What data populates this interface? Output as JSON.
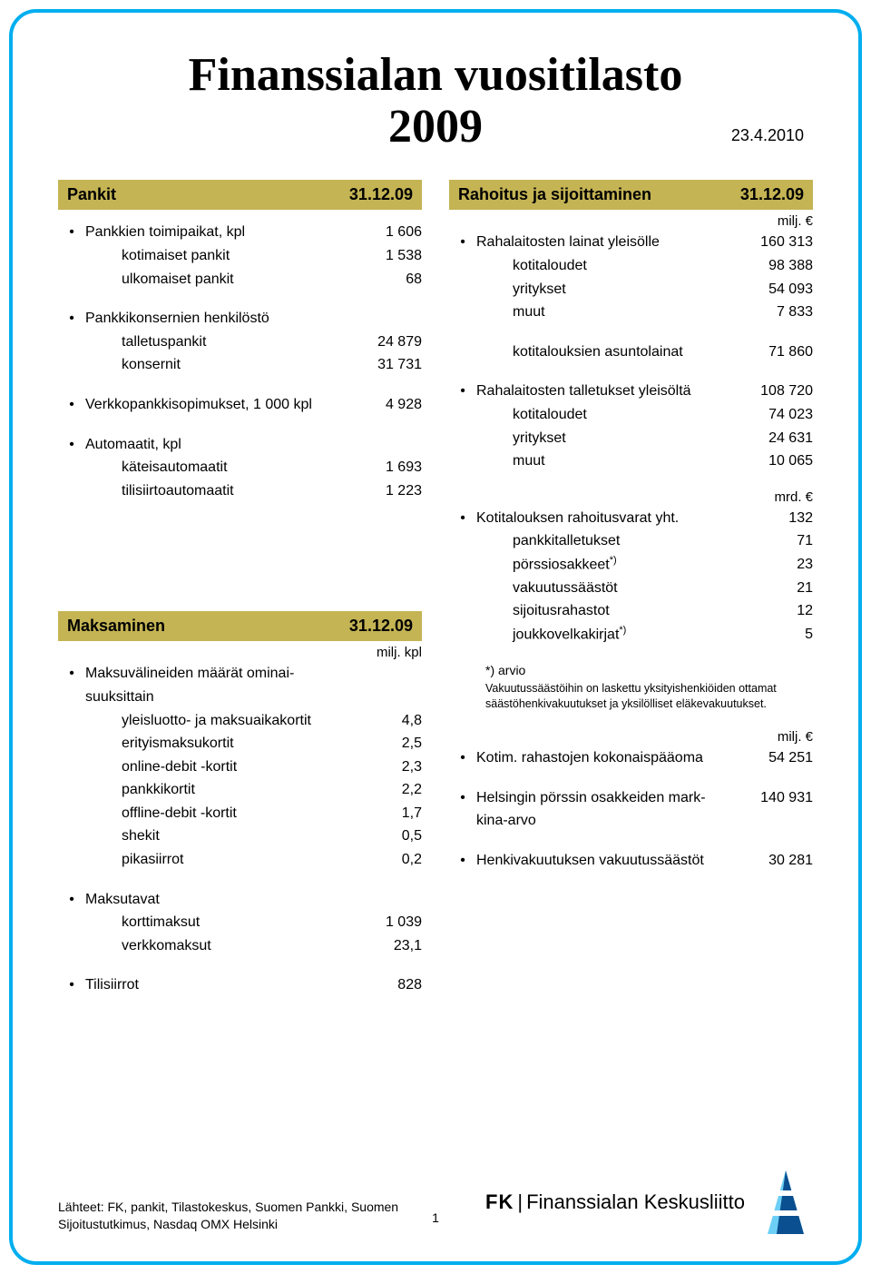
{
  "page": {
    "title": "Finanssialan vuositilasto\n2009",
    "title_line1": "Finanssialan vuositilasto",
    "title_line2": "2009",
    "date": "23.4.2010",
    "page_number": "1",
    "border_color": "#00aeef",
    "header_bg": "#c4b454"
  },
  "pankit": {
    "title": "Pankit",
    "date": "31.12.09",
    "items": [
      {
        "label": "Pankkien toimipaikat, kpl",
        "value": "1 606",
        "main": true
      },
      {
        "label": "kotimaiset pankit",
        "value": "1 538",
        "sub": true
      },
      {
        "label": "ulkomaiset pankit",
        "value": "68",
        "sub": true
      }
    ],
    "group2": [
      {
        "label": "Pankkikonsernien henkilöstö",
        "value": "",
        "main": true
      },
      {
        "label": "talletuspankit",
        "value": "24 879",
        "sub": true
      },
      {
        "label": "konsernit",
        "value": "31 731",
        "sub": true
      }
    ],
    "group3": [
      {
        "label": "Verkkopankkisopimukset, 1 000 kpl",
        "value": "4 928",
        "main": true
      }
    ],
    "group4": [
      {
        "label": "Automaatit, kpl",
        "value": "",
        "main": true
      },
      {
        "label": "käteisautomaatit",
        "value": "1 693",
        "sub": true
      },
      {
        "label": "tilisiirtoautomaatit",
        "value": "1 223",
        "sub": true
      }
    ]
  },
  "maksaminen": {
    "title": "Maksaminen",
    "date": "31.12.09",
    "unit": "milj. kpl",
    "group1": [
      {
        "label": "Maksuvälineiden määrät ominai-\nsuuksittain",
        "label1": "Maksuvälineiden määrät ominai-",
        "label2": "suuksittain",
        "value": "",
        "main": true
      },
      {
        "label": "yleisluotto- ja maksuaikakortit",
        "value": "4,8",
        "sub": true
      },
      {
        "label": "erityismaksukortit",
        "value": "2,5",
        "sub": true
      },
      {
        "label": "online-debit -kortit",
        "value": "2,3",
        "sub": true
      },
      {
        "label": "pankkikortit",
        "value": "2,2",
        "sub": true
      },
      {
        "label": "offline-debit -kortit",
        "value": "1,7",
        "sub": true
      },
      {
        "label": "shekit",
        "value": "0,5",
        "sub": true
      },
      {
        "label": "pikasiirrot",
        "value": "0,2",
        "sub": true
      }
    ],
    "group2": [
      {
        "label": "Maksutavat",
        "value": "",
        "main": true
      },
      {
        "label": "korttimaksut",
        "value": "1 039",
        "sub": true
      },
      {
        "label": "verkkomaksut",
        "value": "23,1",
        "sub": true
      }
    ],
    "group3": [
      {
        "label": "Tilisiirrot",
        "value": "828",
        "main": true
      }
    ]
  },
  "rahoitus": {
    "title": "Rahoitus ja sijoittaminen",
    "date": "31.12.09",
    "unit1": "milj. €",
    "group1": [
      {
        "label": "Rahalaitosten lainat yleisölle",
        "value": "160 313",
        "main": true
      },
      {
        "label": "kotitaloudet",
        "value": "98 388",
        "sub": true
      },
      {
        "label": "yritykset",
        "value": "54 093",
        "sub": true
      },
      {
        "label": "muut",
        "value": "7 833",
        "sub": true
      }
    ],
    "group2": [
      {
        "label": "kotitalouksien asuntolainat",
        "value": "71 860",
        "sub": true
      }
    ],
    "group3": [
      {
        "label": "Rahalaitosten talletukset yleisöltä",
        "value": "108 720",
        "main": true
      },
      {
        "label": "kotitaloudet",
        "value": "74 023",
        "sub": true
      },
      {
        "label": "yritykset",
        "value": "24 631",
        "sub": true
      },
      {
        "label": "muut",
        "value": "10 065",
        "sub": true
      }
    ],
    "unit2": "mrd. €",
    "group4": [
      {
        "label": "Kotitalouksen rahoitusvarat yht.",
        "value": "132",
        "main": true
      },
      {
        "label": "pankkitalletukset",
        "value": "71",
        "sub": true
      },
      {
        "label": "pörssiosakkeet",
        "sup": "*)",
        "value": "23",
        "sub": true
      },
      {
        "label": "vakuutussäästöt",
        "value": "21",
        "sub": true
      },
      {
        "label": "sijoitusrahastot",
        "value": "12",
        "sub": true
      },
      {
        "label": "joukkovelkakirjat",
        "sup": "*)",
        "value": "5",
        "sub": true
      }
    ],
    "footnote_label": "*) arvio",
    "footnote": "Vakuutussäästöihin on laskettu yksityishenkiöiden ottamat säästöhenkivakuutukset ja yksilölliset eläkevakuutukset.",
    "unit3": "milj. €",
    "group5": [
      {
        "label": "Kotim. rahastojen kokonaispääoma",
        "value": "54 251",
        "main": true
      }
    ],
    "group6": [
      {
        "label": "Helsingin pörssin osakkeiden mark-",
        "label2": "kina-arvo",
        "value": "140 931",
        "main": true,
        "twoline": true
      }
    ],
    "group7": [
      {
        "label": "Henkivakuutuksen vakuutussäästöt",
        "value": "30 281",
        "main": true
      }
    ]
  },
  "footer": {
    "sources": "Lähteet: FK, pankit, Tilastokeskus, Suomen Pankki, Suomen Sijoitustutkimus, Nasdaq OMX Helsinki",
    "brand_fk": "FK",
    "brand_name": "Finanssialan Keskusliitto",
    "logo_colors": {
      "light": "#6dcff6",
      "dark": "#0a4f8f"
    }
  }
}
